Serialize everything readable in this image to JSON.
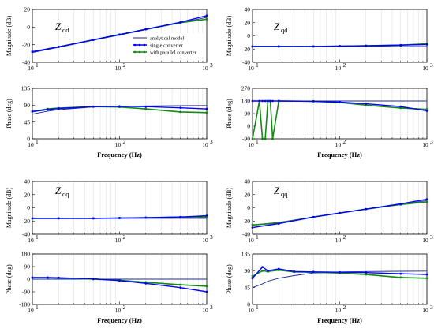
{
  "colors": {
    "analytical": "#1f2a9a",
    "single": "#0000ff",
    "parallel": "#138a13",
    "axis": "#000000",
    "grid": "#cfcfcf"
  },
  "chart_data": {
    "type": "line",
    "legend": {
      "placement": "top-right of Zdd magnitude plot",
      "entries": [
        "analytical model",
        "single converter",
        "with parallel converter"
      ]
    },
    "panels": [
      {
        "label_main": "Z",
        "label_sub": "dd",
        "mag": {
          "ylabel": "Magnitude (dB)",
          "ylim": [
            -40,
            20
          ],
          "yticks": [
            -40,
            -20,
            0,
            20
          ],
          "x": [
            10,
            20,
            50,
            100,
            200,
            500,
            1000
          ],
          "analytical": [
            -29,
            -23,
            -15,
            -9,
            -3,
            5,
            11
          ],
          "single": [
            -28,
            -22.5,
            -14.5,
            -8.5,
            -2.5,
            5.5,
            13
          ],
          "parallel": [
            -28,
            -22.5,
            -14.5,
            -8.5,
            -2.5,
            5,
            9
          ]
        },
        "phase": {
          "ylabel": "Phase (deg)",
          "xlabel": "Frequency (Hz)",
          "ylim": [
            0,
            135
          ],
          "yticks": [
            0,
            45,
            90,
            135
          ],
          "x": [
            10,
            15,
            20,
            50,
            100,
            200,
            500,
            1000
          ],
          "analytical": [
            66,
            74,
            78,
            85,
            87,
            88,
            88.5,
            89
          ],
          "single": [
            73,
            78,
            81,
            86,
            87,
            86,
            83,
            80
          ],
          "parallel": [
            73,
            80,
            82,
            86,
            85,
            80,
            72,
            70
          ]
        }
      },
      {
        "label_main": "Z",
        "label_sub": "qd",
        "mag": {
          "ylabel": "Magnitude (dB)",
          "ylim": [
            -40,
            40
          ],
          "yticks": [
            -40,
            -20,
            0,
            20,
            40
          ],
          "x": [
            10,
            20,
            50,
            100,
            200,
            500,
            1000
          ],
          "analytical": [
            -16,
            -16,
            -16,
            -16,
            -16,
            -16,
            -16
          ],
          "single": [
            -16,
            -16,
            -16,
            -15.5,
            -15,
            -14,
            -13
          ],
          "parallel": [
            -16,
            -16,
            -16,
            -15.5,
            -15,
            -14,
            -12
          ]
        },
        "phase": {
          "ylabel": "Phase (deg)",
          "xlabel": "Frequency (Hz)",
          "ylim": [
            -90,
            270
          ],
          "yticks": [
            -90,
            0,
            90,
            180,
            270
          ],
          "x": [
            10,
            12,
            13,
            14,
            15,
            16,
            17,
            20,
            50,
            100,
            200,
            500,
            1000
          ],
          "analytical": [
            180,
            180,
            180,
            180,
            180,
            180,
            180,
            180,
            180,
            180,
            180,
            180,
            180
          ],
          "single": [
            180,
            180,
            180,
            180,
            180,
            180,
            180,
            180,
            178,
            172,
            160,
            140,
            110
          ],
          "parallel": [
            -90,
            180,
            -90,
            -90,
            180,
            180,
            -90,
            180,
            178,
            170,
            150,
            130,
            120
          ]
        }
      },
      {
        "label_main": "Z",
        "label_sub": "dq",
        "mag": {
          "ylabel": "Magnitude (dB)",
          "ylim": [
            -40,
            40
          ],
          "yticks": [
            -40,
            -20,
            0,
            20,
            40
          ],
          "x": [
            10,
            20,
            50,
            100,
            200,
            500,
            1000
          ],
          "analytical": [
            -16,
            -16,
            -16,
            -16,
            -16,
            -16,
            -16
          ],
          "single": [
            -16,
            -16,
            -16,
            -15.5,
            -15,
            -14,
            -12
          ],
          "parallel": [
            -16,
            -16,
            -16,
            -15.5,
            -15,
            -14,
            -14
          ]
        },
        "phase": {
          "ylabel": "Phase (deg)",
          "xlabel": "Frequency (Hz)",
          "ylim": [
            -180,
            180
          ],
          "yticks": [
            -180,
            -90,
            0,
            90,
            180
          ],
          "x": [
            10,
            15,
            20,
            50,
            100,
            200,
            500,
            1000
          ],
          "analytical": [
            0,
            0,
            0,
            0,
            0,
            0,
            0,
            0
          ],
          "single": [
            12,
            12,
            10,
            2,
            -10,
            -30,
            -60,
            -90
          ],
          "parallel": [
            10,
            10,
            8,
            0,
            -8,
            -22,
            -40,
            -50
          ]
        }
      },
      {
        "label_main": "Z",
        "label_sub": "qq",
        "mag": {
          "ylabel": "Magnitude (dB)",
          "ylim": [
            -40,
            40
          ],
          "yticks": [
            -40,
            -20,
            0,
            20,
            40
          ],
          "x": [
            10,
            20,
            50,
            100,
            200,
            500,
            1000
          ],
          "analytical": [
            -26,
            -22,
            -14,
            -8,
            -2,
            5,
            11
          ],
          "single": [
            -30,
            -24,
            -14,
            -8,
            -2,
            6,
            13
          ],
          "parallel": [
            -26,
            -23,
            -14,
            -8,
            -2,
            5,
            9
          ]
        },
        "phase": {
          "ylabel": "Phase (deg)",
          "xlabel": "Frequency (Hz)",
          "ylim": [
            0,
            135
          ],
          "yticks": [
            0,
            45,
            90,
            135
          ],
          "x": [
            10,
            13,
            15,
            20,
            30,
            50,
            100,
            200,
            500,
            1000
          ],
          "analytical": [
            45,
            55,
            62,
            70,
            77,
            84,
            87,
            88,
            88.5,
            89
          ],
          "single": [
            70,
            100,
            90,
            95,
            88,
            87,
            86,
            85,
            82,
            80
          ],
          "parallel": [
            75,
            90,
            88,
            92,
            87,
            86,
            84,
            80,
            72,
            70
          ]
        }
      }
    ]
  }
}
